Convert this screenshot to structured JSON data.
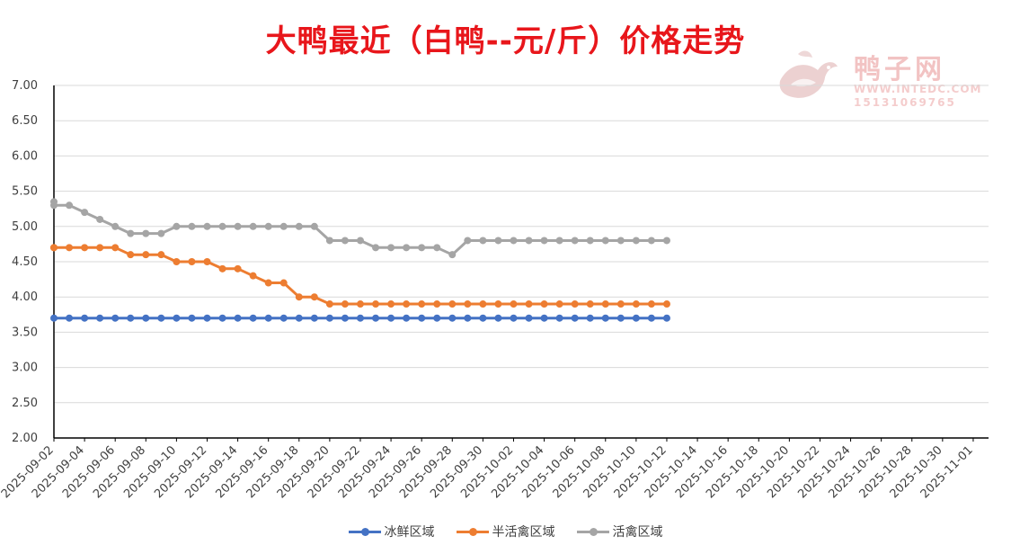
{
  "chart_data": {
    "type": "line",
    "title": "大鸭最近（白鸭--元/斤）价格走势",
    "ylim": [
      2.0,
      7.0
    ],
    "y_ticks": [
      "7.00",
      "6.50",
      "6.00",
      "5.50",
      "5.00",
      "4.50",
      "4.00",
      "3.50",
      "3.00",
      "2.50",
      "2.00"
    ],
    "x_tick_labels": [
      "2025-09-02",
      "2025-09-04",
      "2025-09-06",
      "2025-09-08",
      "2025-09-10",
      "2025-09-12",
      "2025-09-14",
      "2025-09-16",
      "2025-09-18",
      "2025-09-20",
      "2025-09-22",
      "2025-09-24",
      "2025-09-26",
      "2025-09-28",
      "2025-09-30",
      "2025-10-02",
      "2025-10-04",
      "2025-10-06",
      "2025-10-08",
      "2025-10-10",
      "2025-10-12",
      "2025-10-14",
      "2025-10-16",
      "2025-10-18",
      "2025-10-20",
      "2025-10-22",
      "2025-10-24",
      "2025-10-26",
      "2025-10-28",
      "2025-10-30",
      "2025-11-01"
    ],
    "x_start": "2025-09-02",
    "x_end": "2025-11-02",
    "grid": true,
    "legend_position": "bottom",
    "series": [
      {
        "name": "冰鲜区域",
        "color": "#4472c4",
        "x": [
          "2025-09-02",
          "2025-09-03",
          "2025-09-04",
          "2025-09-05",
          "2025-09-06",
          "2025-09-07",
          "2025-09-08",
          "2025-09-09",
          "2025-09-10",
          "2025-09-11",
          "2025-09-12",
          "2025-09-13",
          "2025-09-14",
          "2025-09-15",
          "2025-09-16",
          "2025-09-17",
          "2025-09-18",
          "2025-09-19",
          "2025-09-20",
          "2025-09-21",
          "2025-09-22",
          "2025-09-23",
          "2025-09-24",
          "2025-09-25",
          "2025-09-26",
          "2025-09-27",
          "2025-09-28",
          "2025-09-29",
          "2025-09-30",
          "2025-10-01",
          "2025-10-02",
          "2025-10-03",
          "2025-10-04",
          "2025-10-05",
          "2025-10-06",
          "2025-10-07",
          "2025-10-08",
          "2025-10-09",
          "2025-10-10",
          "2025-10-11",
          "2025-10-12"
        ],
        "values": [
          3.7,
          3.7,
          3.7,
          3.7,
          3.7,
          3.7,
          3.7,
          3.7,
          3.7,
          3.7,
          3.7,
          3.7,
          3.7,
          3.7,
          3.7,
          3.7,
          3.7,
          3.7,
          3.7,
          3.7,
          3.7,
          3.7,
          3.7,
          3.7,
          3.7,
          3.7,
          3.7,
          3.7,
          3.7,
          3.7,
          3.7,
          3.7,
          3.7,
          3.7,
          3.7,
          3.7,
          3.7,
          3.7,
          3.7,
          3.7,
          3.7
        ]
      },
      {
        "name": "半活禽区域",
        "color": "#ed7d31",
        "x": [
          "2025-09-01",
          "2025-09-02",
          "2025-09-03",
          "2025-09-04",
          "2025-09-05",
          "2025-09-06",
          "2025-09-07",
          "2025-09-08",
          "2025-09-09",
          "2025-09-10",
          "2025-09-11",
          "2025-09-12",
          "2025-09-13",
          "2025-09-14",
          "2025-09-15",
          "2025-09-16",
          "2025-09-17",
          "2025-09-18",
          "2025-09-19",
          "2025-09-20",
          "2025-09-21",
          "2025-09-22",
          "2025-09-23",
          "2025-09-24",
          "2025-09-25",
          "2025-09-26",
          "2025-09-27",
          "2025-09-28",
          "2025-09-29",
          "2025-09-30",
          "2025-10-01",
          "2025-10-02",
          "2025-10-03",
          "2025-10-04",
          "2025-10-05",
          "2025-10-06",
          "2025-10-07",
          "2025-10-08",
          "2025-10-09",
          "2025-10-10",
          "2025-10-11",
          "2025-10-12"
        ],
        "values": [
          4.7,
          4.7,
          4.7,
          4.7,
          4.7,
          4.7,
          4.6,
          4.6,
          4.6,
          4.5,
          4.5,
          4.5,
          4.4,
          4.4,
          4.3,
          4.2,
          4.2,
          4.0,
          4.0,
          3.9,
          3.9,
          3.9,
          3.9,
          3.9,
          3.9,
          3.9,
          3.9,
          3.9,
          3.9,
          3.9,
          3.9,
          3.9,
          3.9,
          3.9,
          3.9,
          3.9,
          3.9,
          3.9,
          3.9,
          3.9,
          3.9,
          3.9
        ]
      },
      {
        "name": "活禽区域",
        "color": "#a5a5a5",
        "x": [
          "2025-09-01",
          "2025-09-02",
          "2025-09-03",
          "2025-09-04",
          "2025-09-05",
          "2025-09-06",
          "2025-09-07",
          "2025-09-08",
          "2025-09-09",
          "2025-09-10",
          "2025-09-11",
          "2025-09-12",
          "2025-09-13",
          "2025-09-14",
          "2025-09-15",
          "2025-09-16",
          "2025-09-17",
          "2025-09-18",
          "2025-09-19",
          "2025-09-20",
          "2025-09-21",
          "2025-09-22",
          "2025-09-23",
          "2025-09-24",
          "2025-09-25",
          "2025-09-26",
          "2025-09-27",
          "2025-09-28",
          "2025-09-29",
          "2025-09-30",
          "2025-10-01",
          "2025-10-02",
          "2025-10-03",
          "2025-10-04",
          "2025-10-05",
          "2025-10-06",
          "2025-10-07",
          "2025-10-08",
          "2025-10-09",
          "2025-10-10",
          "2025-10-11",
          "2025-10-12"
        ],
        "values": [
          5.35,
          5.3,
          5.3,
          5.2,
          5.1,
          5.0,
          4.9,
          4.9,
          4.9,
          5.0,
          5.0,
          5.0,
          5.0,
          5.0,
          5.0,
          5.0,
          5.0,
          5.0,
          5.0,
          4.8,
          4.8,
          4.8,
          4.7,
          4.7,
          4.7,
          4.7,
          4.7,
          4.6,
          4.8,
          4.8,
          4.8,
          4.8,
          4.8,
          4.8,
          4.8,
          4.8,
          4.8,
          4.8,
          4.8,
          4.8,
          4.8,
          4.8
        ]
      }
    ]
  },
  "watermark": {
    "brand": "鸭子网",
    "site": "WWW.INTEDC.COM",
    "phone": "15131069765"
  }
}
